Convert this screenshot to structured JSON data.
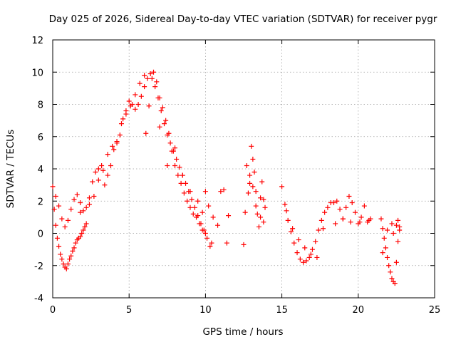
{
  "chart_data": {
    "type": "scatter",
    "title": "Day 025 of 2026, Sidereal Day-to-day VTEC variation (SDTVAR) for receiver pygr",
    "xlabel": "GPS time / hours",
    "ylabel": "SDTVAR / TECUs",
    "xlim": [
      0,
      25
    ],
    "ylim": [
      -4,
      12
    ],
    "x_ticks": [
      0,
      5,
      10,
      15,
      20,
      25
    ],
    "y_ticks": [
      -4,
      -2,
      0,
      2,
      4,
      6,
      8,
      10,
      12
    ],
    "x_tick_labels": [
      "0",
      "5",
      "10",
      "15",
      "20",
      "25"
    ],
    "y_tick_labels": [
      "-4",
      "-2",
      "0",
      "2",
      "4",
      "6",
      "8",
      "10",
      "12"
    ],
    "grid": true,
    "marker": "+",
    "color": "#ff0000",
    "series": [
      {
        "name": "SDTVAR",
        "x": [
          0.0,
          0.1,
          0.2,
          0.3,
          0.4,
          0.5,
          0.6,
          0.7,
          0.8,
          0.9,
          1.0,
          1.1,
          1.2,
          1.3,
          1.4,
          1.5,
          1.6,
          1.7,
          1.8,
          1.9,
          2.0,
          2.1,
          2.2,
          0.2,
          0.4,
          0.6,
          0.8,
          1.0,
          1.2,
          1.4,
          1.6,
          1.8,
          2.0,
          2.2,
          2.4,
          2.6,
          2.8,
          3.0,
          3.2,
          3.4,
          3.6,
          3.8,
          4.0,
          4.2,
          4.4,
          4.6,
          4.8,
          5.0,
          5.2,
          5.4,
          5.6,
          5.8,
          6.0,
          6.2,
          6.4,
          6.6,
          6.8,
          7.0,
          7.2,
          7.4,
          7.6,
          7.8,
          8.0,
          8.2,
          8.4,
          8.6,
          8.8,
          9.0,
          9.2,
          9.4,
          9.6,
          9.8,
          10.0,
          1.8,
          2.1,
          2.4,
          2.7,
          3.0,
          3.3,
          3.6,
          3.9,
          4.2,
          4.5,
          4.8,
          5.1,
          5.4,
          5.7,
          6.0,
          6.5,
          6.7,
          6.9,
          7.1,
          7.3,
          7.5,
          7.7,
          7.9,
          8.1,
          8.3,
          8.5,
          8.7,
          8.9,
          9.1,
          9.3,
          9.5,
          9.7,
          9.9,
          10.1,
          10.3,
          6.1,
          6.3,
          7.0,
          7.5,
          8.0,
          8.5,
          9.0,
          9.5,
          9.8,
          10.0,
          10.2,
          10.5,
          10.8,
          11.0,
          11.2,
          11.5,
          11.4,
          10.4,
          12.6,
          12.8,
          12.9,
          13.0,
          13.1,
          13.2,
          13.3,
          13.4,
          13.5,
          13.6,
          13.7,
          13.8,
          13.9,
          12.5,
          12.7,
          12.9,
          13.1,
          13.3,
          13.6,
          13.8,
          15.0,
          15.2,
          15.4,
          15.6,
          15.8,
          16.0,
          16.2,
          16.4,
          16.6,
          16.8,
          17.0,
          17.2,
          17.4,
          17.6,
          17.8,
          18.0,
          18.2,
          15.3,
          15.7,
          16.1,
          16.5,
          16.9,
          17.3,
          17.7,
          18.4,
          18.6,
          18.8,
          19.0,
          19.2,
          19.4,
          19.6,
          19.8,
          20.0,
          20.2,
          20.4,
          20.6,
          20.8,
          18.5,
          19.0,
          19.5,
          20.1,
          20.7,
          21.5,
          21.6,
          21.7,
          21.8,
          21.9,
          22.0,
          22.1,
          22.2,
          22.3,
          22.4,
          22.5,
          22.6,
          22.7,
          21.6,
          21.9,
          22.2,
          22.5,
          22.7,
          22.3,
          22.6
        ],
        "y": [
          2.9,
          1.5,
          0.5,
          -0.3,
          -0.8,
          -1.3,
          -1.6,
          -1.9,
          -2.1,
          -2.2,
          -1.9,
          -1.6,
          -1.4,
          -1.1,
          -0.9,
          -0.6,
          -0.4,
          -0.3,
          -0.2,
          0.0,
          0.2,
          0.4,
          0.6,
          2.3,
          1.7,
          0.9,
          0.4,
          0.8,
          1.5,
          2.1,
          2.4,
          1.9,
          1.4,
          1.6,
          2.2,
          3.2,
          3.8,
          4.0,
          4.2,
          3.0,
          3.6,
          4.2,
          5.2,
          5.6,
          6.1,
          7.1,
          7.6,
          8.2,
          8.0,
          7.7,
          8.0,
          8.5,
          9.1,
          9.6,
          9.9,
          10.0,
          9.4,
          8.4,
          7.8,
          7.0,
          6.2,
          5.1,
          4.2,
          3.6,
          3.1,
          2.5,
          2.0,
          1.6,
          1.2,
          1.0,
          0.6,
          0.2,
          0.0,
          1.3,
          0.4,
          1.8,
          2.3,
          3.3,
          3.9,
          4.9,
          5.4,
          5.7,
          6.8,
          7.4,
          7.9,
          8.6,
          9.3,
          9.8,
          9.6,
          9.1,
          8.4,
          7.6,
          6.8,
          6.1,
          5.6,
          5.1,
          4.6,
          4.1,
          3.6,
          3.1,
          2.6,
          2.1,
          1.6,
          1.1,
          0.6,
          0.2,
          -0.3,
          -0.8,
          6.2,
          7.9,
          6.6,
          4.2,
          5.3,
          3.6,
          2.6,
          2.0,
          1.3,
          2.6,
          1.7,
          1.0,
          0.5,
          2.6,
          2.7,
          1.1,
          -0.6,
          -0.6,
          1.3,
          2.5,
          3.6,
          5.4,
          4.6,
          3.8,
          2.6,
          1.2,
          0.4,
          2.2,
          3.2,
          2.1,
          1.6,
          -0.7,
          4.2,
          3.1,
          2.9,
          1.7,
          1.0,
          0.7,
          2.9,
          1.8,
          0.8,
          0.1,
          -0.6,
          -1.2,
          -1.6,
          -1.8,
          -1.7,
          -1.5,
          -1.0,
          -0.5,
          0.2,
          0.8,
          1.3,
          1.6,
          1.9,
          1.4,
          0.3,
          -0.4,
          -0.9,
          -1.3,
          -1.5,
          0.3,
          1.9,
          2.0,
          1.5,
          0.9,
          1.6,
          2.3,
          1.9,
          1.3,
          0.6,
          1.0,
          1.7,
          0.7,
          0.9,
          0.6,
          0.9,
          0.7,
          0.7,
          0.8,
          0.9,
          0.3,
          -0.3,
          -0.9,
          -1.5,
          -2.0,
          -2.4,
          -2.8,
          -3.0,
          -3.1,
          -1.8,
          -0.5,
          0.4,
          -1.2,
          0.2,
          0.6,
          0.5,
          0.2,
          0.0,
          0.8
        ]
      }
    ]
  }
}
